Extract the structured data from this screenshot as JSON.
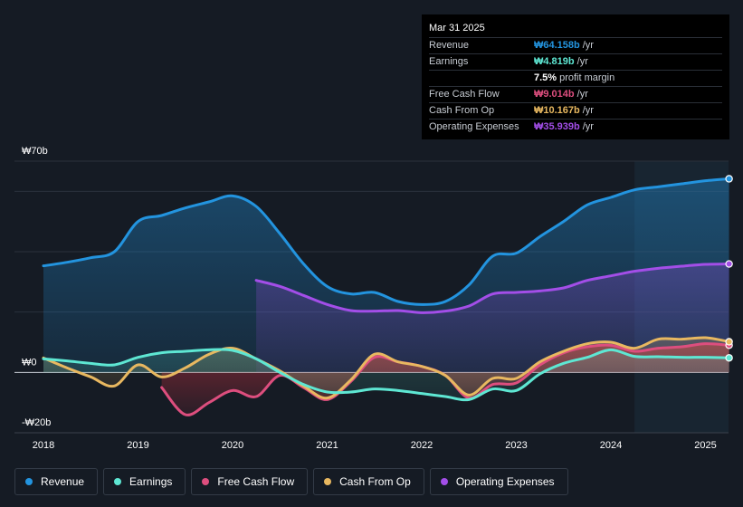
{
  "tooltip": {
    "date": "Mar 31 2025",
    "rows": [
      {
        "label": "Revenue",
        "value": "₩64.158b",
        "unit": "/yr",
        "color": "#2394df"
      },
      {
        "label": "Earnings",
        "value": "₩4.819b",
        "unit": "/yr",
        "color": "#5ee7d3"
      },
      {
        "label": "",
        "value": "7.5%",
        "unit": "profit margin",
        "color": "#ffffff"
      },
      {
        "label": "Free Cash Flow",
        "value": "₩9.014b",
        "unit": "/yr",
        "color": "#dd4e7e"
      },
      {
        "label": "Cash From Op",
        "value": "₩10.167b",
        "unit": "/yr",
        "color": "#e8b860"
      },
      {
        "label": "Operating Expenses",
        "value": "₩35.939b",
        "unit": "/yr",
        "color": "#a34ee8"
      }
    ]
  },
  "legend": [
    {
      "label": "Revenue",
      "color": "#2394df"
    },
    {
      "label": "Earnings",
      "color": "#5ee7d3"
    },
    {
      "label": "Free Cash Flow",
      "color": "#dd4e7e"
    },
    {
      "label": "Cash From Op",
      "color": "#e8b860"
    },
    {
      "label": "Operating Expenses",
      "color": "#a34ee8"
    }
  ],
  "chart_data": {
    "type": "area",
    "title": "",
    "y_unit": "₩ billions",
    "ylim": [
      -20,
      70
    ],
    "xlim": [
      2017.9,
      2025.25
    ],
    "y_tick_labels": [
      {
        "value": 70,
        "label": "₩70b"
      },
      {
        "value": 0,
        "label": "₩0"
      },
      {
        "value": -20,
        "label": "-₩20b"
      }
    ],
    "x_tick_labels": [
      {
        "value": 2018,
        "label": "2018"
      },
      {
        "value": 2019,
        "label": "2019"
      },
      {
        "value": 2020,
        "label": "2020"
      },
      {
        "value": 2021,
        "label": "2021"
      },
      {
        "value": 2022,
        "label": "2022"
      },
      {
        "value": 2023,
        "label": "2023"
      },
      {
        "value": 2024,
        "label": "2024"
      },
      {
        "value": 2025,
        "label": "2025"
      }
    ],
    "highlight_from": 2024.25,
    "series": [
      {
        "name": "Revenue",
        "color": "#2394df",
        "points": [
          [
            2018,
            35.3
          ],
          [
            2018.25,
            36.5
          ],
          [
            2018.5,
            38
          ],
          [
            2018.75,
            40
          ],
          [
            2019,
            50
          ],
          [
            2019.25,
            52
          ],
          [
            2019.5,
            54.5
          ],
          [
            2019.75,
            56.5
          ],
          [
            2020,
            58.5
          ],
          [
            2020.25,
            55
          ],
          [
            2020.5,
            46
          ],
          [
            2020.75,
            36
          ],
          [
            2021,
            28.5
          ],
          [
            2021.25,
            26
          ],
          [
            2021.5,
            26.5
          ],
          [
            2021.75,
            23.5
          ],
          [
            2022,
            22.5
          ],
          [
            2022.25,
            23.5
          ],
          [
            2022.5,
            29
          ],
          [
            2022.75,
            38.5
          ],
          [
            2023,
            39.5
          ],
          [
            2023.25,
            45
          ],
          [
            2023.5,
            50
          ],
          [
            2023.75,
            55.5
          ],
          [
            2024,
            58
          ],
          [
            2024.25,
            60.5
          ],
          [
            2024.5,
            61.5
          ],
          [
            2024.75,
            62.5
          ],
          [
            2025,
            63.5
          ],
          [
            2025.25,
            64.158
          ]
        ]
      },
      {
        "name": "Earnings",
        "color": "#5ee7d3",
        "points": [
          [
            2018,
            4.5
          ],
          [
            2018.25,
            3.8
          ],
          [
            2018.5,
            3
          ],
          [
            2018.75,
            2.5
          ],
          [
            2019,
            5
          ],
          [
            2019.25,
            6.5
          ],
          [
            2019.5,
            7
          ],
          [
            2019.75,
            7.5
          ],
          [
            2020,
            7.3
          ],
          [
            2020.25,
            4.5
          ],
          [
            2020.5,
            0
          ],
          [
            2020.75,
            -4
          ],
          [
            2021,
            -6.5
          ],
          [
            2021.25,
            -6.5
          ],
          [
            2021.5,
            -5.5
          ],
          [
            2021.75,
            -6
          ],
          [
            2022,
            -7
          ],
          [
            2022.25,
            -8
          ],
          [
            2022.5,
            -9
          ],
          [
            2022.75,
            -5.5
          ],
          [
            2023,
            -6
          ],
          [
            2023.25,
            -0.5
          ],
          [
            2023.5,
            3
          ],
          [
            2023.75,
            5
          ],
          [
            2024,
            7.5
          ],
          [
            2024.25,
            5.3
          ],
          [
            2024.5,
            5.2
          ],
          [
            2024.75,
            5
          ],
          [
            2025,
            5
          ],
          [
            2025.25,
            4.819
          ]
        ]
      },
      {
        "name": "Free Cash Flow",
        "color": "#dd4e7e",
        "points": [
          [
            2019.25,
            -5
          ],
          [
            2019.5,
            -14
          ],
          [
            2019.75,
            -10
          ],
          [
            2020,
            -6
          ],
          [
            2020.25,
            -8
          ],
          [
            2020.5,
            -1
          ],
          [
            2020.75,
            -5
          ],
          [
            2021,
            -9
          ],
          [
            2021.25,
            -3
          ],
          [
            2021.5,
            5
          ],
          [
            2021.75,
            3.5
          ],
          [
            2022,
            2
          ],
          [
            2022.25,
            -1
          ],
          [
            2022.5,
            -8.5
          ],
          [
            2022.75,
            -4
          ],
          [
            2023,
            -3.5
          ],
          [
            2023.25,
            2.5
          ],
          [
            2023.5,
            6.5
          ],
          [
            2023.75,
            8.5
          ],
          [
            2024,
            9
          ],
          [
            2024.25,
            7
          ],
          [
            2024.5,
            8
          ],
          [
            2024.75,
            8.5
          ],
          [
            2025,
            9.5
          ],
          [
            2025.25,
            9.014
          ]
        ]
      },
      {
        "name": "Cash From Op",
        "color": "#e8b860",
        "points": [
          [
            2018,
            4.8
          ],
          [
            2018.25,
            1.5
          ],
          [
            2018.5,
            -1.5
          ],
          [
            2018.75,
            -4.5
          ],
          [
            2019,
            2.5
          ],
          [
            2019.25,
            -1.5
          ],
          [
            2019.5,
            1.5
          ],
          [
            2019.75,
            6
          ],
          [
            2020,
            8
          ],
          [
            2020.25,
            4.5
          ],
          [
            2020.5,
            0.5
          ],
          [
            2020.75,
            -4.5
          ],
          [
            2021,
            -8.5
          ],
          [
            2021.25,
            -2.5
          ],
          [
            2021.5,
            6
          ],
          [
            2021.75,
            3.5
          ],
          [
            2022,
            2
          ],
          [
            2022.25,
            -1
          ],
          [
            2022.5,
            -7.5
          ],
          [
            2022.75,
            -2
          ],
          [
            2023,
            -2
          ],
          [
            2023.25,
            3.5
          ],
          [
            2023.5,
            7
          ],
          [
            2023.75,
            9.5
          ],
          [
            2024,
            10
          ],
          [
            2024.25,
            8
          ],
          [
            2024.5,
            11
          ],
          [
            2024.75,
            11
          ],
          [
            2025,
            11.5
          ],
          [
            2025.25,
            10.167
          ]
        ]
      },
      {
        "name": "Operating Expenses",
        "color": "#a34ee8",
        "points": [
          [
            2020.25,
            30.5
          ],
          [
            2020.5,
            28.5
          ],
          [
            2020.75,
            25.5
          ],
          [
            2021,
            22.5
          ],
          [
            2021.25,
            20.5
          ],
          [
            2021.5,
            20.3
          ],
          [
            2021.75,
            20.5
          ],
          [
            2022,
            19.8
          ],
          [
            2022.25,
            20.3
          ],
          [
            2022.5,
            22
          ],
          [
            2022.75,
            26
          ],
          [
            2023,
            26.5
          ],
          [
            2023.25,
            27
          ],
          [
            2023.5,
            28
          ],
          [
            2023.75,
            30.5
          ],
          [
            2024,
            32
          ],
          [
            2024.25,
            33.5
          ],
          [
            2024.5,
            34.5
          ],
          [
            2024.75,
            35.2
          ],
          [
            2025,
            35.8
          ],
          [
            2025.25,
            35.939
          ]
        ]
      }
    ]
  }
}
